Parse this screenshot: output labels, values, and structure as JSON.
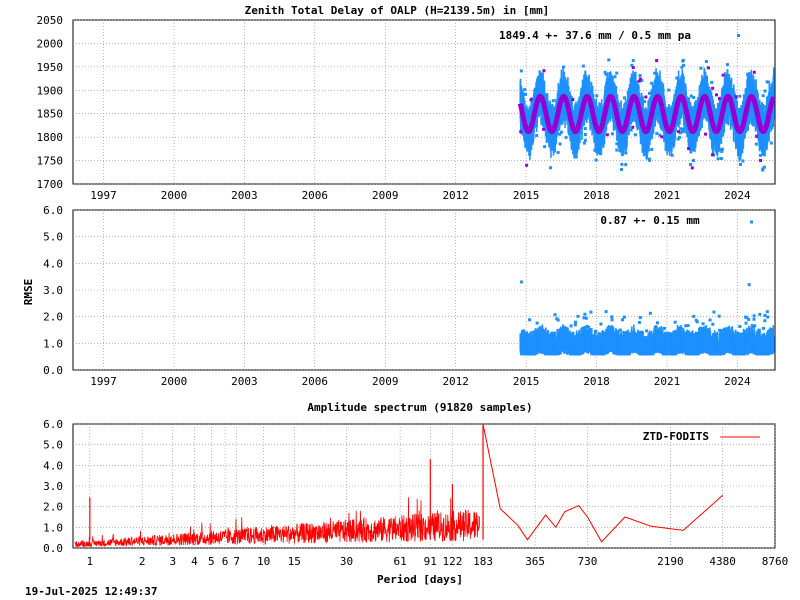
{
  "colors": {
    "series_blue": "#1e90ff",
    "series_magenta": "#9400d3",
    "spectrum_red": "#ff0000",
    "grid": "#888888"
  },
  "footer": {
    "timestamp": "19-Jul-2025 12:49:37"
  },
  "chart_data": [
    {
      "id": "ztd",
      "type": "scatter",
      "title": "Zenith Total Delay of OALP (H=2139.5m) in [mm]",
      "annotation": "1849.4 +-  37.6 mm /  0.5 mm pa",
      "ylabel": "",
      "xlabel": "",
      "xlim": [
        1995.7,
        2025.6
      ],
      "ylim": [
        1700,
        2050
      ],
      "x_ticks": [
        1997,
        2000,
        2003,
        2006,
        2009,
        2012,
        2015,
        2018,
        2021,
        2024
      ],
      "y_ticks": [
        1700,
        1750,
        1800,
        1850,
        1900,
        1950,
        2000,
        2050
      ],
      "grid": true,
      "data_start": 2014.75,
      "data_end": 2025.55,
      "series": [
        {
          "kind": "daily_range",
          "color": "#1e90ff",
          "values_mean": 1849.4,
          "seasonal_amplitude": 37.6,
          "daily_spread": 48
        },
        {
          "kind": "annual_fit",
          "color": "#9400d3",
          "mean": 1849.4,
          "amplitude": 37.6,
          "peak_phase": 0.6
        }
      ]
    },
    {
      "id": "rmse",
      "type": "scatter",
      "title": "",
      "annotation": "0.87 +-  0.15 mm",
      "ylabel": "RMSE",
      "xlabel": "",
      "xlim": [
        1995.7,
        2025.6
      ],
      "ylim": [
        0.0,
        6.0
      ],
      "x_ticks": [
        1997,
        2000,
        2003,
        2006,
        2009,
        2012,
        2015,
        2018,
        2021,
        2024
      ],
      "y_ticks": [
        0.0,
        1.0,
        2.0,
        3.0,
        4.0,
        5.0,
        6.0
      ],
      "grid": true,
      "series": [
        {
          "kind": "rmse_band",
          "color": "#1e90ff",
          "mean": 0.87,
          "std": 0.15,
          "outliers": [
            [
              2014.8,
              3.3
            ],
            [
              2024.5,
              3.2
            ],
            [
              2024.6,
              5.55
            ]
          ]
        }
      ]
    },
    {
      "id": "spectrum",
      "type": "line",
      "title": "Amplitude spectrum (91820 samples)",
      "xlabel": "Period [days]",
      "ylabel": "",
      "x_scale": "log",
      "xlim": [
        0.8,
        8760
      ],
      "ylim": [
        0.0,
        6.0
      ],
      "x_ticks": [
        1,
        2,
        3,
        4,
        5,
        6,
        7,
        10,
        15,
        30,
        61,
        91,
        122,
        183,
        365,
        730,
        2190,
        4380,
        8760
      ],
      "y_ticks": [
        0.0,
        1.0,
        2.0,
        3.0,
        4.0,
        5.0,
        6.0
      ],
      "grid": true,
      "legend": {
        "label": "ZTD-FODITS",
        "placement": "top-right"
      },
      "series": [
        {
          "name": "ZTD-FODITS",
          "color": "#ff0000",
          "peaks": [
            [
              1.0,
              2.45
            ],
            [
              91,
              4.3
            ],
            [
              122,
              3.1
            ],
            [
              183,
              6.0
            ]
          ],
          "long_period_points": [
            [
              183,
              6.0
            ],
            [
              230,
              1.9
            ],
            [
              290,
              1.1
            ],
            [
              330,
              0.4
            ],
            [
              365,
              0.9
            ],
            [
              420,
              1.6
            ],
            [
              480,
              1.0
            ],
            [
              540,
              1.75
            ],
            [
              650,
              2.05
            ],
            [
              730,
              1.5
            ],
            [
              880,
              0.3
            ],
            [
              1200,
              1.5
            ],
            [
              1700,
              1.05
            ],
            [
              2600,
              0.85
            ],
            [
              4380,
              2.55
            ]
          ]
        }
      ]
    }
  ]
}
